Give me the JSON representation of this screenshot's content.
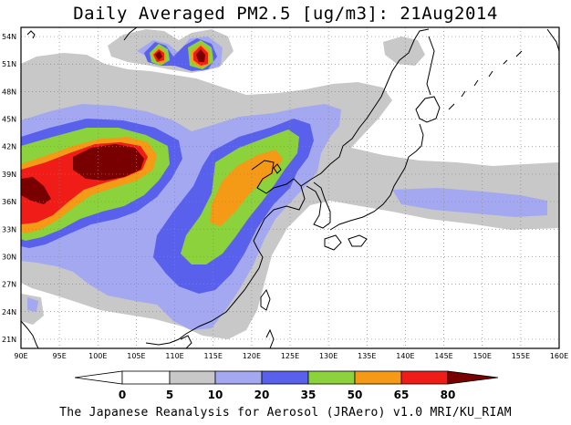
{
  "title": "Daily Averaged PM2.5 [ug/m3]: 21Aug2014",
  "footer": "The Japanese Reanalysis for Aerosol (JRAero) v1.0 MRI/KU_RIAM",
  "map": {
    "lon_range": [
      90,
      160
    ],
    "lat_range": [
      20,
      55
    ],
    "lon_ticks": [
      "90E",
      "95E",
      "100E",
      "105E",
      "110E",
      "115E",
      "120E",
      "125E",
      "130E",
      "135E",
      "140E",
      "145E",
      "150E",
      "155E",
      "160E"
    ],
    "lat_ticks": [
      "21N",
      "24N",
      "27N",
      "30N",
      "33N",
      "36N",
      "39N",
      "42N",
      "45N",
      "48N",
      "51N",
      "54N"
    ],
    "grid": "dotted"
  },
  "colorbar": {
    "labels": [
      "0",
      "5",
      "10",
      "20",
      "35",
      "50",
      "65",
      "80"
    ],
    "colors": {
      "below_0": "#ffffff",
      "c0_5": "#ffffff",
      "c5_10": "#c8c8c8",
      "c10_20": "#a4a8f0",
      "c20_35": "#5860ec",
      "c35_50": "#8cd23c",
      "c50_65": "#f49a16",
      "c65_80": "#f01c18",
      "above_80": "#780000"
    }
  }
}
